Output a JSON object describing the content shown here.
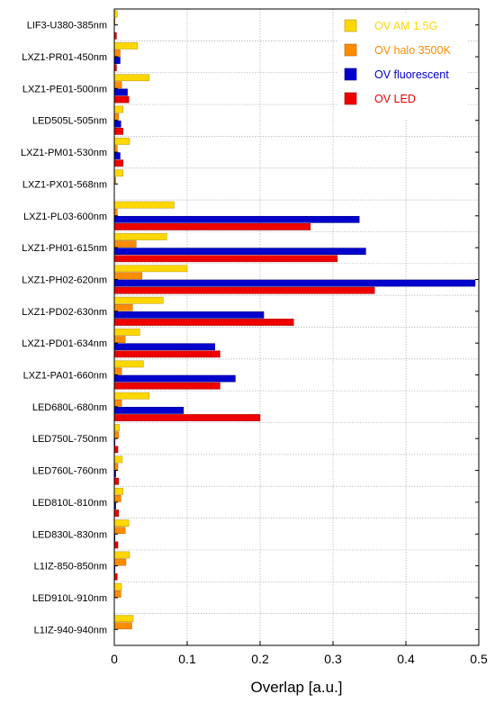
{
  "chart_data": {
    "type": "bar",
    "orientation": "horizontal",
    "title": "",
    "xlabel": "Overlap [a.u.]",
    "ylabel": "",
    "xlim": [
      0,
      0.5
    ],
    "xticks": [
      "0",
      "0.1",
      "0.2",
      "0.3",
      "0.4",
      "0.5"
    ],
    "grid": true,
    "legend_position": "top-right",
    "categories": [
      "LIF3-U380-385nm",
      "LXZ1-PR01-450nm",
      "LXZ1-PE01-500nm",
      "LED505L-505nm",
      "LXZ1-PM01-530nm",
      "LXZ1-PX01-568nm",
      "LXZ1-PL03-600nm",
      "LXZ1-PH01-615nm",
      "LXZ1-PH02-620nm",
      "LXZ1-PD02-630nm",
      "LXZ1-PD01-634nm",
      "LXZ1-PA01-660nm",
      "LED680L-680nm",
      "LED750L-750nm",
      "LED760L-760nm",
      "LED810L-810nm",
      "LED830L-830nm",
      "L1IZ-850-850nm",
      "LED910L-910nm",
      "L1IZ-940-940nm"
    ],
    "series": [
      {
        "name": "OV AM 1.5G",
        "color": "#ffd700",
        "stroke": "#b8950a",
        "values": [
          0.004,
          0.032,
          0.048,
          0.012,
          0.021,
          0.012,
          0.082,
          0.072,
          0.1,
          0.067,
          0.035,
          0.04,
          0.048,
          0.007,
          0.011,
          0.012,
          0.02,
          0.021,
          0.01,
          0.026
        ]
      },
      {
        "name": "OV halo 3500K",
        "color": "#ff8c00",
        "stroke": "#b85f00",
        "values": [
          0.001,
          0.008,
          0.01,
          0.006,
          0.004,
          0.002,
          0.004,
          0.03,
          0.038,
          0.025,
          0.015,
          0.01,
          0.01,
          0.006,
          0.005,
          0.009,
          0.015,
          0.016,
          0.009,
          0.024
        ]
      },
      {
        "name": "OV fluorescent",
        "color": "#0000cc",
        "stroke": "#000080",
        "values": [
          0.0,
          0.008,
          0.018,
          0.009,
          0.008,
          0.0,
          0.336,
          0.345,
          0.495,
          0.205,
          0.138,
          0.166,
          0.095,
          0.001,
          0.002,
          0.002,
          0.001,
          0.001,
          0.0,
          0.0
        ]
      },
      {
        "name": "OV LED",
        "color": "#ee0000",
        "stroke": "#990000",
        "values": [
          0.003,
          0.003,
          0.02,
          0.012,
          0.012,
          0.0,
          0.269,
          0.306,
          0.357,
          0.246,
          0.145,
          0.145,
          0.2,
          0.005,
          0.006,
          0.006,
          0.005,
          0.004,
          0.0,
          0.0
        ]
      }
    ]
  }
}
